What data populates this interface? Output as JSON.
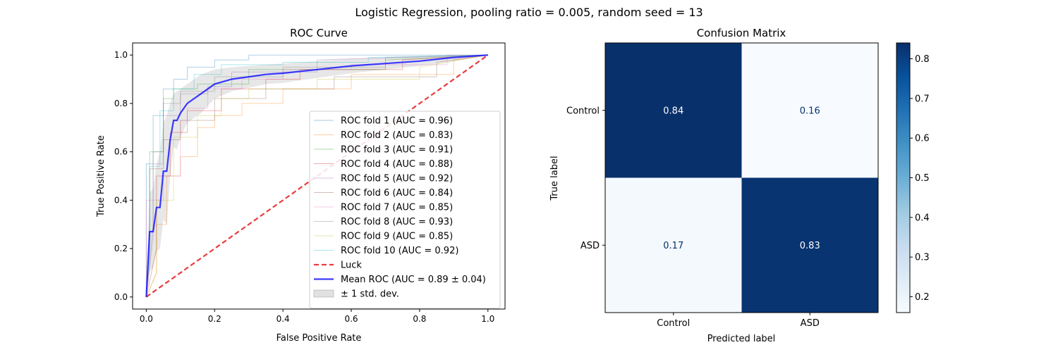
{
  "suptitle": "Logistic Regression, pooling ratio = 0.005, random seed = 13",
  "chart_data": [
    {
      "type": "line",
      "title": "ROC Curve",
      "xlabel": "False Positive Rate",
      "ylabel": "True Positive Rate",
      "xlim": [
        -0.04,
        1.05
      ],
      "ylim": [
        -0.05,
        1.05
      ],
      "xticks": [
        0.0,
        0.2,
        0.4,
        0.6,
        0.8,
        1.0
      ],
      "yticks": [
        0.0,
        0.2,
        0.4,
        0.6,
        0.8,
        1.0
      ],
      "tick_labels": [
        "0.0",
        "0.2",
        "0.4",
        "0.6",
        "0.8",
        "1.0"
      ],
      "grid": false,
      "legend_position": "lower-right",
      "series": [
        {
          "name": "ROC fold 1 (AUC = 0.96)",
          "color": "#1f77b4",
          "x": [
            0,
            0,
            0.02,
            0.02,
            0.05,
            0.05,
            0.08,
            0.08,
            0.12,
            0.12,
            0.2,
            0.2,
            0.3,
            0.3,
            0.6,
            0.6,
            1.0
          ],
          "y": [
            0,
            0.55,
            0.55,
            0.75,
            0.75,
            0.86,
            0.86,
            0.9,
            0.9,
            0.95,
            0.95,
            0.98,
            0.98,
            1.0,
            1.0,
            1.0,
            1.0
          ]
        },
        {
          "name": "ROC fold 2 (AUC = 0.83)",
          "color": "#ff7f0e",
          "x": [
            0,
            0.03,
            0.03,
            0.06,
            0.06,
            0.1,
            0.1,
            0.15,
            0.15,
            0.2,
            0.2,
            0.28,
            0.28,
            0.4,
            0.4,
            0.6,
            0.6,
            0.9,
            0.9,
            1.0
          ],
          "y": [
            0,
            0.1,
            0.3,
            0.3,
            0.5,
            0.5,
            0.58,
            0.58,
            0.7,
            0.7,
            0.75,
            0.75,
            0.8,
            0.8,
            0.86,
            0.86,
            0.92,
            0.92,
            0.98,
            1.0
          ]
        },
        {
          "name": "ROC fold 3 (AUC = 0.91)",
          "color": "#2ca02c",
          "x": [
            0,
            0.01,
            0.01,
            0.05,
            0.05,
            0.08,
            0.08,
            0.15,
            0.15,
            0.3,
            0.3,
            0.7,
            0.7,
            1.0
          ],
          "y": [
            0,
            0.2,
            0.6,
            0.6,
            0.82,
            0.82,
            0.86,
            0.86,
            0.88,
            0.88,
            0.94,
            0.94,
            0.98,
            1.0
          ]
        },
        {
          "name": "ROC fold 4 (AUC = 0.88)",
          "color": "#d62728",
          "x": [
            0,
            0.03,
            0.03,
            0.07,
            0.07,
            0.12,
            0.12,
            0.22,
            0.22,
            0.35,
            0.35,
            0.45,
            0.45,
            0.75,
            0.75,
            1.0
          ],
          "y": [
            0,
            0.2,
            0.5,
            0.5,
            0.68,
            0.68,
            0.77,
            0.77,
            0.86,
            0.86,
            0.9,
            0.9,
            0.94,
            0.94,
            0.98,
            1.0
          ]
        },
        {
          "name": "ROC fold 5 (AUC = 0.92)",
          "color": "#9467bd",
          "x": [
            0,
            0.02,
            0.02,
            0.05,
            0.05,
            0.1,
            0.1,
            0.18,
            0.18,
            0.25,
            0.25,
            0.5,
            0.5,
            1.0
          ],
          "y": [
            0,
            0.3,
            0.55,
            0.55,
            0.75,
            0.75,
            0.84,
            0.84,
            0.87,
            0.87,
            0.93,
            0.93,
            0.98,
            1.0
          ]
        },
        {
          "name": "ROC fold 6 (AUC = 0.84)",
          "color": "#8c564b",
          "x": [
            0,
            0.01,
            0.01,
            0.05,
            0.05,
            0.1,
            0.1,
            0.2,
            0.2,
            0.35,
            0.35,
            0.55,
            0.55,
            0.85,
            0.85,
            1.0
          ],
          "y": [
            0,
            0.3,
            0.53,
            0.53,
            0.65,
            0.65,
            0.73,
            0.73,
            0.82,
            0.82,
            0.86,
            0.86,
            0.91,
            0.91,
            0.97,
            1.0
          ]
        },
        {
          "name": "ROC fold 7 (AUC = 0.85)",
          "color": "#e377c2",
          "x": [
            0,
            0.0,
            0.05,
            0.05,
            0.1,
            0.1,
            0.12,
            0.12,
            0.18,
            0.18,
            0.28,
            0.28,
            0.4,
            0.4,
            0.6,
            0.6,
            0.88,
            0.88,
            1.0
          ],
          "y": [
            0,
            0.4,
            0.4,
            0.5,
            0.5,
            0.73,
            0.73,
            0.78,
            0.78,
            0.86,
            0.86,
            0.9,
            0.9,
            0.94,
            0.94,
            0.96,
            0.96,
            1.0,
            1.0
          ]
        },
        {
          "name": "ROC fold 8 (AUC = 0.93)",
          "color": "#7f7f7f",
          "x": [
            0,
            0.02,
            0.02,
            0.05,
            0.05,
            0.1,
            0.1,
            0.2,
            0.2,
            0.4,
            0.4,
            0.7,
            0.7,
            1.0
          ],
          "y": [
            0,
            0.25,
            0.6,
            0.6,
            0.8,
            0.8,
            0.85,
            0.85,
            0.91,
            0.91,
            0.95,
            0.95,
            0.99,
            1.0
          ]
        },
        {
          "name": "ROC fold 9 (AUC = 0.85)",
          "color": "#bcbd22",
          "x": [
            0,
            0.03,
            0.03,
            0.08,
            0.08,
            0.15,
            0.15,
            0.22,
            0.22,
            0.3,
            0.3,
            0.5,
            0.5,
            0.8,
            0.8,
            1.0
          ],
          "y": [
            0,
            0.1,
            0.4,
            0.4,
            0.66,
            0.66,
            0.75,
            0.75,
            0.82,
            0.82,
            0.86,
            0.86,
            0.9,
            0.9,
            0.95,
            1.0
          ]
        },
        {
          "name": "ROC fold 10 (AUC = 0.92)",
          "color": "#17becf",
          "x": [
            0,
            0.01,
            0.01,
            0.04,
            0.04,
            0.08,
            0.08,
            0.14,
            0.14,
            0.22,
            0.22,
            0.4,
            0.4,
            0.65,
            0.65,
            1.0
          ],
          "y": [
            0,
            0.2,
            0.54,
            0.54,
            0.77,
            0.77,
            0.86,
            0.86,
            0.92,
            0.92,
            0.96,
            0.96,
            0.97,
            0.97,
            0.99,
            1.0
          ]
        }
      ],
      "luck": {
        "name": "Luck",
        "color": "#e41a1c",
        "x": [
          0,
          1
        ],
        "y": [
          0,
          1
        ]
      },
      "mean_roc": {
        "name": "Mean ROC (AUC = 0.89 ± 0.04)",
        "color": "#1a1aff",
        "x": [
          0,
          0.01,
          0.02,
          0.03,
          0.04,
          0.05,
          0.06,
          0.07,
          0.08,
          0.09,
          0.1,
          0.12,
          0.14,
          0.16,
          0.18,
          0.2,
          0.25,
          0.3,
          0.35,
          0.4,
          0.5,
          0.6,
          0.7,
          0.8,
          0.9,
          1.0
        ],
        "y": [
          0,
          0.27,
          0.27,
          0.37,
          0.37,
          0.52,
          0.52,
          0.65,
          0.73,
          0.73,
          0.76,
          0.8,
          0.82,
          0.84,
          0.86,
          0.88,
          0.9,
          0.91,
          0.92,
          0.925,
          0.94,
          0.955,
          0.965,
          0.975,
          0.99,
          1.0
        ]
      },
      "std_band": {
        "name": "± 1 std. dev.",
        "color": "#888888",
        "x": [
          0,
          0.01,
          0.02,
          0.03,
          0.04,
          0.05,
          0.06,
          0.07,
          0.08,
          0.09,
          0.1,
          0.12,
          0.14,
          0.16,
          0.18,
          0.2,
          0.25,
          0.3,
          0.35,
          0.4,
          0.5,
          0.6,
          0.7,
          0.8,
          0.9,
          1.0
        ],
        "upper": [
          0.1,
          0.43,
          0.45,
          0.55,
          0.6,
          0.72,
          0.75,
          0.8,
          0.84,
          0.85,
          0.86,
          0.88,
          0.9,
          0.92,
          0.93,
          0.94,
          0.95,
          0.955,
          0.96,
          0.965,
          0.975,
          0.985,
          0.99,
          0.995,
          1.0,
          1.0
        ],
        "lower": [
          0.0,
          0.11,
          0.12,
          0.19,
          0.2,
          0.32,
          0.3,
          0.5,
          0.62,
          0.61,
          0.66,
          0.72,
          0.74,
          0.76,
          0.79,
          0.82,
          0.85,
          0.865,
          0.88,
          0.885,
          0.905,
          0.925,
          0.94,
          0.955,
          0.975,
          1.0
        ]
      }
    },
    {
      "type": "heatmap",
      "title": "Confusion Matrix",
      "xlabel": "Predicted label",
      "ylabel": "True label",
      "x_categories": [
        "Control",
        "ASD"
      ],
      "y_categories": [
        "Control",
        "ASD"
      ],
      "values": [
        [
          0.84,
          0.16
        ],
        [
          0.17,
          0.83
        ]
      ],
      "value_labels": [
        [
          "0.84",
          "0.16"
        ],
        [
          "0.17",
          "0.83"
        ]
      ],
      "colormap": "Blues",
      "colorbar_range": [
        0.16,
        0.84
      ],
      "colorbar_ticks": [
        0.2,
        0.3,
        0.4,
        0.5,
        0.6,
        0.7,
        0.8
      ],
      "colorbar_tick_labels": [
        "0.2",
        "0.3",
        "0.4",
        "0.5",
        "0.6",
        "0.7",
        "0.8"
      ]
    }
  ]
}
